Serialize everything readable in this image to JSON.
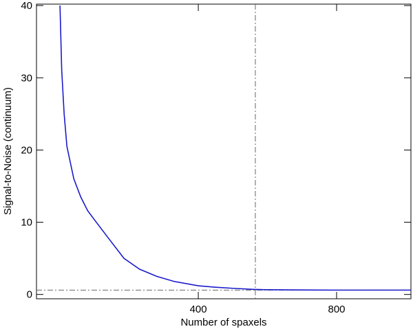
{
  "chart_data": {
    "type": "line",
    "xlabel": "Number of spaxels",
    "ylabel": "Signal-to-Noise  (continuum)",
    "x": [
      0,
      5,
      12,
      20,
      40,
      60,
      80,
      105,
      140,
      185,
      230,
      280,
      330,
      400,
      450,
      500,
      560,
      600,
      700,
      800,
      900,
      1015
    ],
    "series": [
      {
        "color": "#1a1acc",
        "values": [
          40,
          31,
          25,
          20.5,
          16,
          13.5,
          11.6,
          10,
          7.8,
          5,
          3.5,
          2.5,
          1.8,
          1.2,
          1.0,
          0.85,
          0.7,
          0.65,
          0.62,
          0.6,
          0.6,
          0.6
        ]
      }
    ],
    "xlim": [
      -68,
      1015
    ],
    "xticks": [
      400,
      800
    ],
    "ylim": [
      -0.6,
      40.2
    ],
    "yticks": [
      0,
      10,
      20,
      30,
      40
    ],
    "vline": 565,
    "hline": 0.6,
    "ref_color": "#666666"
  }
}
